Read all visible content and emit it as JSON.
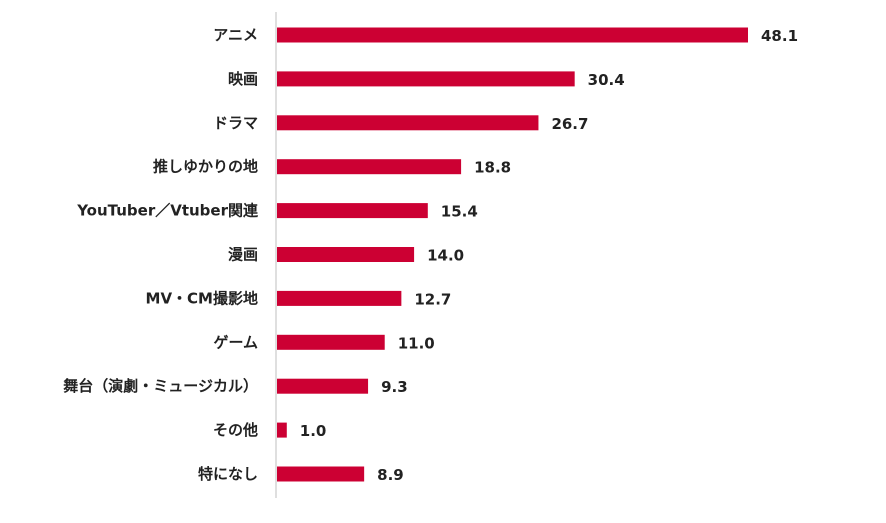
{
  "chart_data": {
    "type": "bar",
    "orientation": "horizontal",
    "categories": [
      "アニメ",
      "映画",
      "ドラマ",
      "推しゆかりの地",
      "YouTuber／Vtuber関連",
      "漫画",
      "MV・CM撮影地",
      "ゲーム",
      "舞台（演劇・ミュージカル）",
      "その他",
      "特になし"
    ],
    "values": [
      48.1,
      30.4,
      26.7,
      18.8,
      15.4,
      14.0,
      12.7,
      11.0,
      9.3,
      1.0,
      8.9
    ],
    "value_labels": [
      "48.1",
      "30.4",
      "26.7",
      "18.8",
      "15.4",
      "14.0",
      "12.7",
      "11.0",
      "9.3",
      "1.0",
      "8.9"
    ],
    "xlim": [
      0,
      55
    ],
    "grid": false,
    "bar_color": "#cc0033",
    "axis_color": "#bfbfbf"
  }
}
